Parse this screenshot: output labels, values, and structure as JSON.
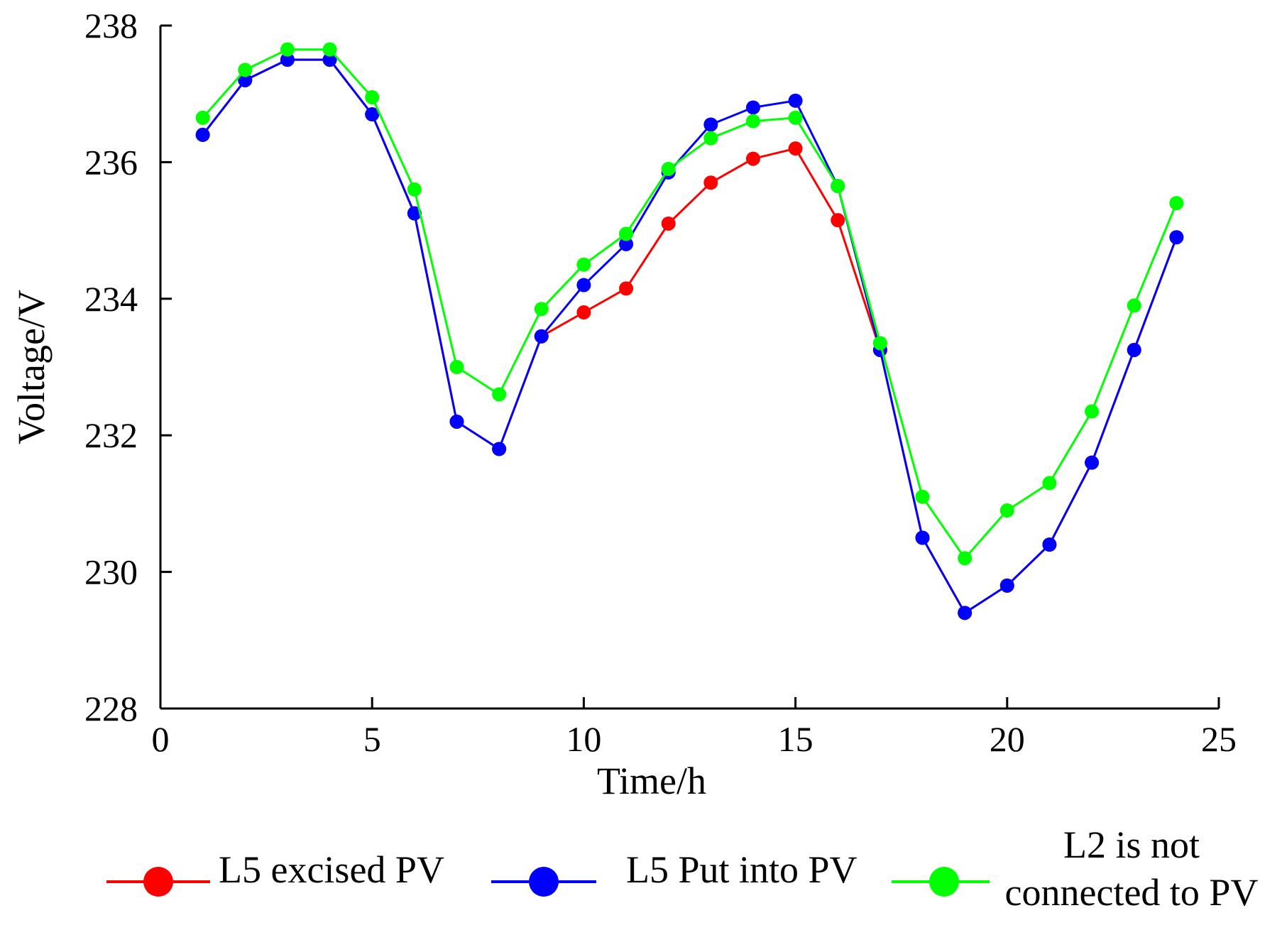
{
  "chart_data": {
    "type": "line",
    "title": "",
    "xlabel": "Time/h",
    "ylabel": "Voltage/V",
    "xlim": [
      0,
      25
    ],
    "ylim": [
      228,
      238
    ],
    "xticks": [
      "0",
      "5",
      "10",
      "15",
      "20",
      "25"
    ],
    "yticks": [
      "228",
      "230",
      "232",
      "234",
      "236",
      "238"
    ],
    "grid": false,
    "legend_position": "bottom",
    "x": [
      1,
      2,
      3,
      4,
      5,
      6,
      7,
      8,
      9,
      10,
      11,
      12,
      13,
      14,
      15,
      16,
      17,
      18,
      19,
      20,
      21,
      22,
      23,
      24
    ],
    "series": [
      {
        "name": "L5 excised PV",
        "color": "#ff0000",
        "legend_lines": [
          "L5 excised PV"
        ],
        "values": [
          236.4,
          237.2,
          237.5,
          237.5,
          236.7,
          235.25,
          232.2,
          231.8,
          233.45,
          233.8,
          234.15,
          235.1,
          235.7,
          236.05,
          236.2,
          235.15,
          233.25,
          230.5,
          229.4,
          229.8,
          230.4,
          231.6,
          233.25,
          234.9
        ]
      },
      {
        "name": "L5 Put into PV",
        "color": "#0000ff",
        "legend_lines": [
          "L5 Put into PV"
        ],
        "values": [
          236.4,
          237.2,
          237.5,
          237.5,
          236.7,
          235.25,
          232.2,
          231.8,
          233.45,
          234.2,
          234.8,
          235.85,
          236.55,
          236.8,
          236.9,
          235.65,
          233.25,
          230.5,
          229.4,
          229.8,
          230.4,
          231.6,
          233.25,
          234.9
        ]
      },
      {
        "name": "L2 is not connected to PV",
        "color": "#00ff00",
        "legend_lines": [
          "L2 is not",
          "connected to PV"
        ],
        "values": [
          236.65,
          237.35,
          237.65,
          237.65,
          236.95,
          235.6,
          233.0,
          232.6,
          233.85,
          234.5,
          234.95,
          235.9,
          236.35,
          236.6,
          236.65,
          235.65,
          233.35,
          231.1,
          230.2,
          230.9,
          231.3,
          232.35,
          233.9,
          235.4
        ]
      }
    ]
  }
}
